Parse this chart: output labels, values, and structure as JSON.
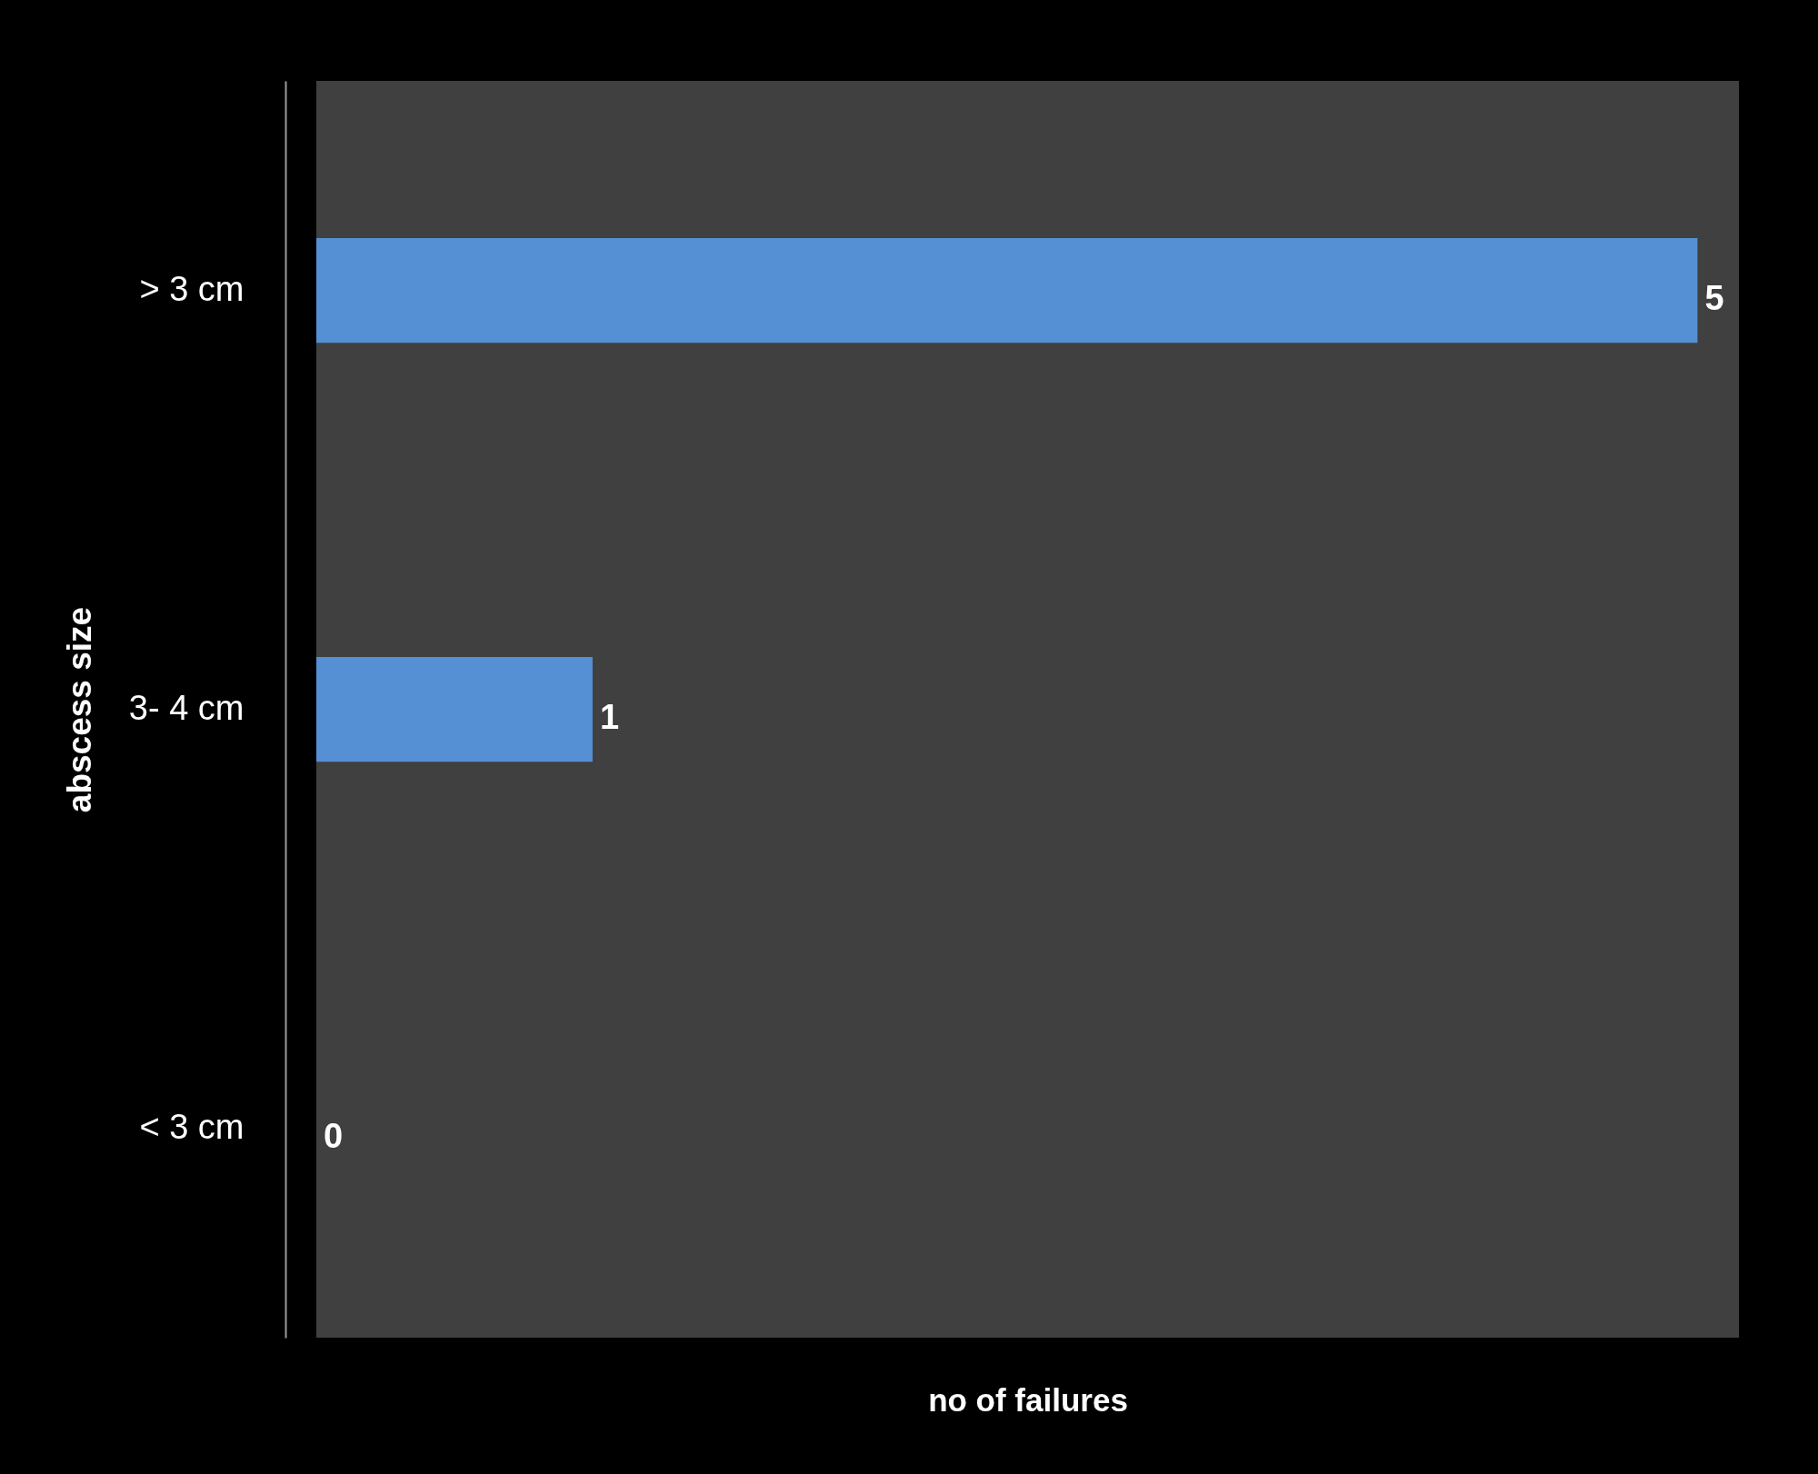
{
  "chart_data": {
    "type": "bar",
    "orientation": "horizontal",
    "xlabel": "no of failures",
    "ylabel": "abscess size",
    "categories": [
      "> 3 cm",
      "3- 4 cm",
      "< 3 cm"
    ],
    "values": [
      5,
      1,
      0
    ],
    "color": "#5590d4",
    "data_labels": true,
    "tick_labels": "y"
  }
}
